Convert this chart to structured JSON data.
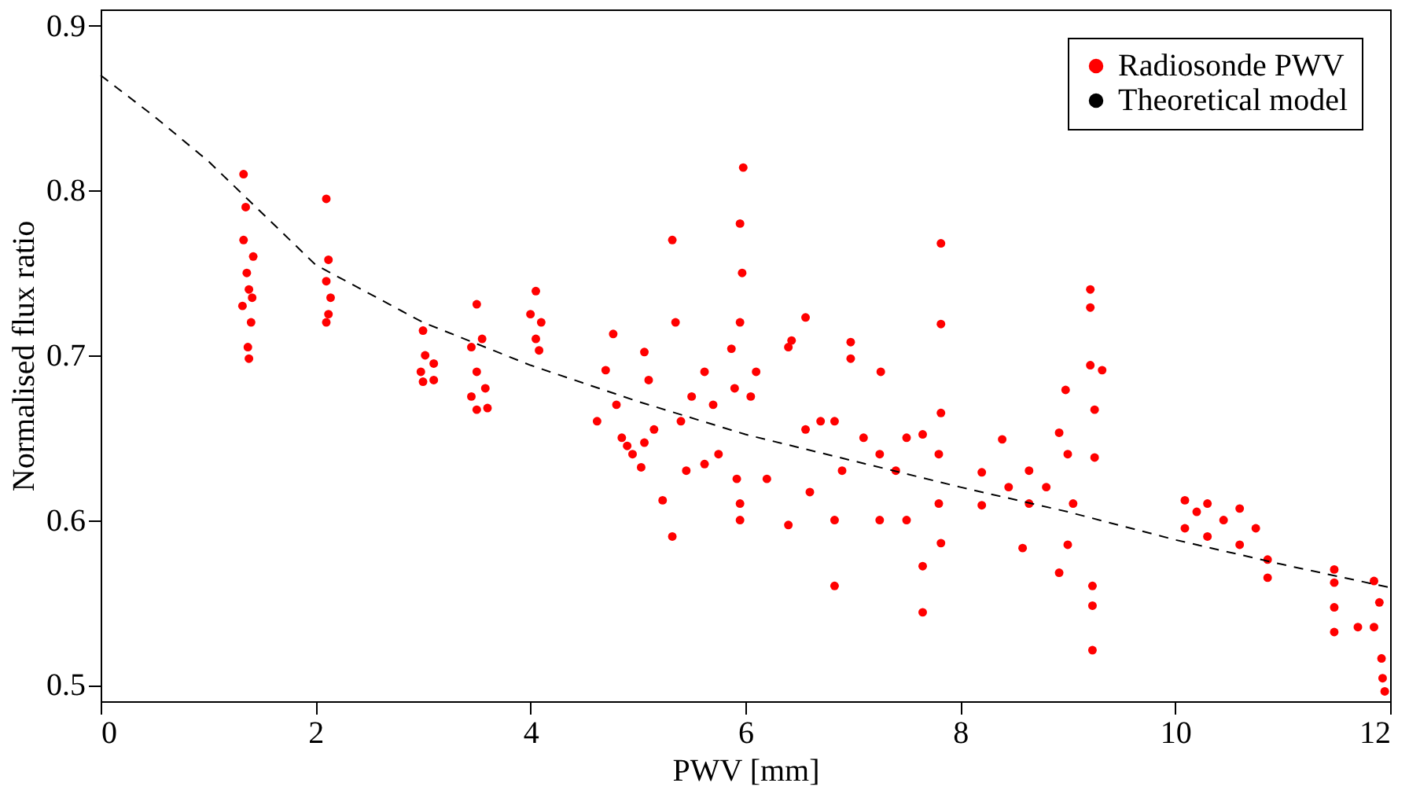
{
  "chart_data": {
    "type": "scatter",
    "xlabel": "PWV [mm]",
    "ylabel": "Normalised flux ratio",
    "xlim": [
      0,
      12
    ],
    "ylim": [
      0.49,
      0.91
    ],
    "xticks": [
      0,
      2,
      4,
      6,
      8,
      10,
      12
    ],
    "yticks": [
      0.5,
      0.6,
      0.7,
      0.8,
      0.9
    ],
    "grid": false,
    "legend": "top right",
    "series": [
      {
        "name": "Radiosonde PWV",
        "marker": "circle",
        "color": "#ff0000",
        "x": [
          1.33,
          1.35,
          1.33,
          1.36,
          1.38,
          1.32,
          1.4,
          1.37,
          1.38,
          1.42,
          1.41,
          2.1,
          2.12,
          2.1,
          2.14,
          2.12,
          2.1,
          3.0,
          3.02,
          2.98,
          3.0,
          3.1,
          3.1,
          3.5,
          3.45,
          3.55,
          3.5,
          3.45,
          3.5,
          3.6,
          3.58,
          4.05,
          4.0,
          4.1,
          4.05,
          4.08,
          4.62,
          4.7,
          4.77,
          4.8,
          4.85,
          4.9,
          4.95,
          5.03,
          5.06,
          5.06,
          5.1,
          5.15,
          5.23,
          5.32,
          5.32,
          5.35,
          5.4,
          5.45,
          5.5,
          5.62,
          5.62,
          5.7,
          5.75,
          5.87,
          5.95,
          5.98,
          5.95,
          5.97,
          5.95,
          5.9,
          5.92,
          5.95,
          6.05,
          6.1,
          6.2,
          6.4,
          6.4,
          6.43,
          6.56,
          6.56,
          6.6,
          6.7,
          6.83,
          6.83,
          6.83,
          6.9,
          6.98,
          6.98,
          7.1,
          7.25,
          7.25,
          7.26,
          7.4,
          7.5,
          7.5,
          7.65,
          7.65,
          7.65,
          7.8,
          7.8,
          7.82,
          7.82,
          7.82,
          7.82,
          8.2,
          8.2,
          8.39,
          8.45,
          8.58,
          8.64,
          8.64,
          8.8,
          8.92,
          8.92,
          8.98,
          9.0,
          9.0,
          9.05,
          9.21,
          9.21,
          9.21,
          9.32,
          9.25,
          9.25,
          9.23,
          9.23,
          9.23,
          10.09,
          10.09,
          10.2,
          10.3,
          10.3,
          10.45,
          10.6,
          10.6,
          10.75,
          10.86,
          10.86,
          11.48,
          11.48,
          11.48,
          11.48,
          11.7,
          11.85,
          11.85,
          11.9,
          11.92,
          11.93,
          11.95
        ],
        "values": [
          0.81,
          0.79,
          0.77,
          0.75,
          0.74,
          0.73,
          0.72,
          0.705,
          0.698,
          0.76,
          0.735,
          0.795,
          0.758,
          0.745,
          0.735,
          0.725,
          0.72,
          0.715,
          0.7,
          0.69,
          0.684,
          0.695,
          0.685,
          0.731,
          0.705,
          0.71,
          0.69,
          0.675,
          0.667,
          0.668,
          0.68,
          0.739,
          0.725,
          0.72,
          0.71,
          0.703,
          0.66,
          0.691,
          0.713,
          0.67,
          0.65,
          0.645,
          0.64,
          0.632,
          0.702,
          0.647,
          0.685,
          0.655,
          0.612,
          0.77,
          0.59,
          0.72,
          0.66,
          0.63,
          0.675,
          0.69,
          0.634,
          0.67,
          0.64,
          0.704,
          0.6,
          0.814,
          0.78,
          0.75,
          0.72,
          0.68,
          0.625,
          0.61,
          0.675,
          0.69,
          0.625,
          0.705,
          0.597,
          0.709,
          0.723,
          0.655,
          0.617,
          0.66,
          0.66,
          0.6,
          0.56,
          0.63,
          0.708,
          0.698,
          0.65,
          0.64,
          0.6,
          0.69,
          0.63,
          0.65,
          0.6,
          0.652,
          0.572,
          0.544,
          0.64,
          0.61,
          0.768,
          0.719,
          0.665,
          0.586,
          0.629,
          0.609,
          0.649,
          0.62,
          0.583,
          0.63,
          0.61,
          0.62,
          0.653,
          0.568,
          0.679,
          0.64,
          0.585,
          0.61,
          0.74,
          0.729,
          0.694,
          0.691,
          0.667,
          0.638,
          0.56,
          0.548,
          0.521,
          0.612,
          0.595,
          0.605,
          0.61,
          0.59,
          0.6,
          0.607,
          0.585,
          0.595,
          0.576,
          0.565,
          0.57,
          0.562,
          0.547,
          0.532,
          0.535,
          0.563,
          0.535,
          0.55,
          0.516,
          0.504,
          0.496
        ]
      },
      {
        "name": "Theoretical model",
        "type": "line",
        "line_style": "dashed",
        "color": "#000000",
        "x": [
          0,
          0.5,
          1,
          2,
          3,
          4,
          5,
          6,
          7,
          8,
          9,
          10,
          11,
          12
        ],
        "values": [
          0.87,
          0.845,
          0.818,
          0.755,
          0.72,
          0.694,
          0.672,
          0.652,
          0.636,
          0.62,
          0.605,
          0.588,
          0.573,
          0.559
        ]
      }
    ]
  }
}
